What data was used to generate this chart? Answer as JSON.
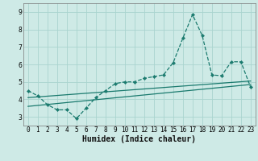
{
  "background_color": "#ceeae6",
  "grid_color": "#aad4cf",
  "line_color": "#1a7a6e",
  "x_label": "Humidex (Indice chaleur)",
  "xlim": [
    -0.5,
    23.5
  ],
  "ylim": [
    2.5,
    9.5
  ],
  "yticks": [
    3,
    4,
    5,
    6,
    7,
    8,
    9
  ],
  "xticks": [
    0,
    1,
    2,
    3,
    4,
    5,
    6,
    7,
    8,
    9,
    10,
    11,
    12,
    13,
    14,
    15,
    16,
    17,
    18,
    19,
    20,
    21,
    22,
    23
  ],
  "series1_x": [
    0,
    1,
    2,
    3,
    4,
    5,
    6,
    7,
    8,
    9,
    10,
    11,
    12,
    13,
    14,
    15,
    16,
    17,
    18,
    19,
    20,
    21,
    22,
    23
  ],
  "series1_y": [
    4.5,
    4.2,
    3.7,
    3.4,
    3.4,
    2.9,
    3.5,
    4.1,
    4.5,
    4.9,
    5.0,
    5.0,
    5.2,
    5.3,
    5.4,
    6.1,
    7.5,
    8.85,
    7.65,
    5.4,
    5.35,
    6.15,
    6.15,
    4.7
  ],
  "series2_x": [
    0,
    23
  ],
  "series2_y": [
    4.1,
    5.05
  ],
  "series3_x": [
    0,
    23
  ],
  "series3_y": [
    3.6,
    4.85
  ],
  "xlabel_fontsize": 7,
  "tick_fontsize": 5.5,
  "marker_size": 2.2,
  "linewidth": 0.9
}
